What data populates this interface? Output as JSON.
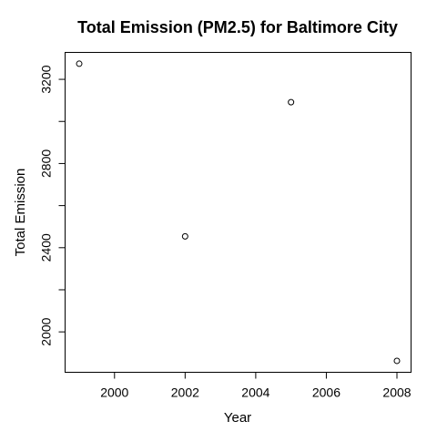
{
  "chart_data": {
    "type": "scatter",
    "title": "Total Emission (PM2.5) for Baltimore City",
    "xlabel": "Year",
    "ylabel": "Total Emission",
    "x": [
      1999,
      2002,
      2005,
      2008
    ],
    "y": [
      3274.2,
      2453.9,
      3091.4,
      1862.3
    ],
    "xlim": [
      1998.6,
      2008.4
    ],
    "ylim": [
      1808,
      3328
    ],
    "x_ticks": [
      2000,
      2002,
      2004,
      2006,
      2008
    ],
    "y_ticks": [
      2000,
      2200,
      2400,
      2600,
      2800,
      3000,
      3200
    ],
    "y_tick_labels": [
      "2000",
      "",
      "2400",
      "",
      "2800",
      "",
      "3200"
    ],
    "marker": "open-circle",
    "colors": {
      "points": "#000000",
      "axes": "#000000",
      "background": "#ffffff"
    },
    "grid": false,
    "legend": "none"
  }
}
